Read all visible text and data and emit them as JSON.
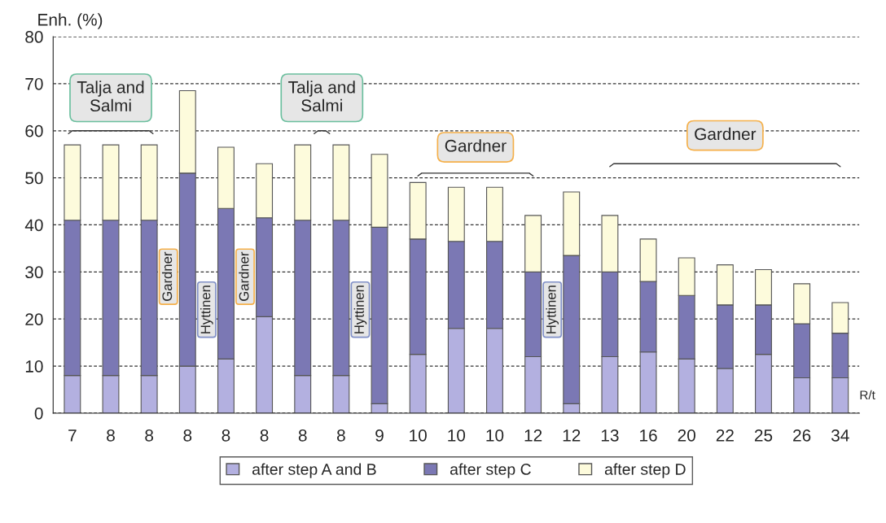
{
  "chart_data": {
    "type": "bar",
    "stacked": true,
    "ylabel": "Enh. (%)",
    "xlabel": "R/t",
    "categories": [
      "7",
      "8",
      "8",
      "8",
      "8",
      "8",
      "8",
      "8",
      "9",
      "10",
      "10",
      "10",
      "12",
      "12",
      "13",
      "16",
      "20",
      "22",
      "25",
      "26",
      "34"
    ],
    "series": [
      {
        "name": "after step A and B",
        "color": "#b3b0e0",
        "values": [
          8,
          8,
          8,
          10,
          11.5,
          20.5,
          8,
          8,
          2,
          12.5,
          18,
          18,
          12,
          2,
          12,
          13,
          11.5,
          9.5,
          12.5,
          7.5,
          7.5
        ]
      },
      {
        "name": "after step C",
        "color": "#7b78b4",
        "values": [
          33,
          33,
          33,
          41,
          32,
          21,
          33,
          33,
          37.5,
          24.5,
          18.5,
          18.5,
          18,
          31.5,
          18,
          15,
          13.5,
          13.5,
          10.5,
          11.5,
          9.5
        ]
      },
      {
        "name": "after step D",
        "color": "#fdfbdc",
        "values": [
          16,
          16,
          16,
          17.5,
          13,
          11.5,
          16,
          16,
          15.5,
          12,
          11.5,
          11.5,
          12,
          13.5,
          12,
          9,
          8,
          8.5,
          7.5,
          8.5,
          6.5
        ]
      }
    ],
    "ylim": [
      0,
      80
    ],
    "yticks": [
      0,
      10,
      20,
      30,
      40,
      50,
      60,
      70,
      80
    ],
    "grid": "y",
    "legend": "bottom",
    "annotations": [
      "Talja and\nSalmi",
      "Talja and\nSalmi",
      "Gardner",
      "Hyttinen",
      "Gardner",
      "Hyttinen",
      "Gardner",
      "Hyttinen",
      "Gardner"
    ]
  }
}
